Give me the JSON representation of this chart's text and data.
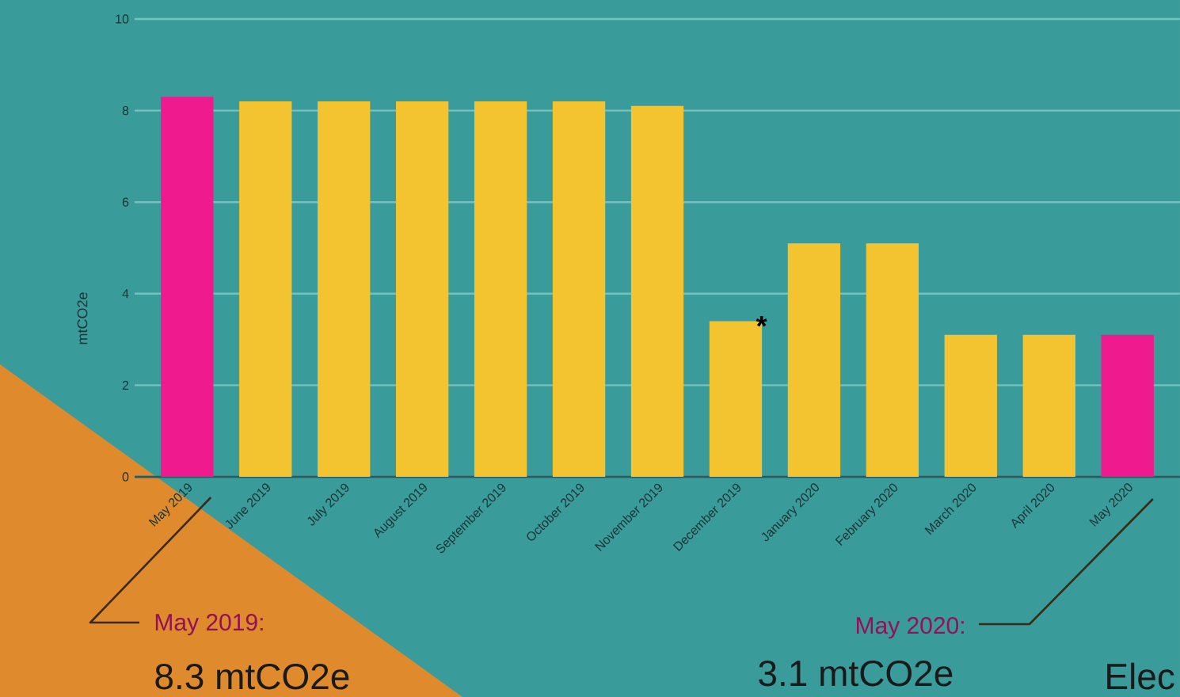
{
  "chart_data": {
    "type": "bar",
    "ylabel": "mtCO2e",
    "categories": [
      "May 2019",
      "June 2019",
      "July 2019",
      "August 2019",
      "September 2019",
      "October 2019",
      "November 2019",
      "December 2019",
      "January 2020",
      "February 2020",
      "March 2020",
      "April 2020",
      "May 2020"
    ],
    "values": [
      8.3,
      8.2,
      8.2,
      8.2,
      8.2,
      8.2,
      8.1,
      3.4,
      5.1,
      5.1,
      3.1,
      3.1,
      3.1
    ],
    "colors": [
      "#ee1a8e",
      "#f4c430",
      "#f4c430",
      "#f4c430",
      "#f4c430",
      "#f4c430",
      "#f4c430",
      "#f4c430",
      "#f4c430",
      "#f4c430",
      "#f4c430",
      "#f4c430",
      "#ee1a8e"
    ],
    "ylim": [
      0,
      10
    ],
    "yticks": [
      0,
      2,
      4,
      6,
      8,
      10
    ],
    "grid": "y",
    "annotations": [
      {
        "text": "*",
        "x": "December 2019",
        "y": 3.4
      },
      "May 2019:",
      "8.3 mtCO2e",
      "May 2020:",
      "3.1 mtCO2e",
      "Elec"
    ]
  }
}
